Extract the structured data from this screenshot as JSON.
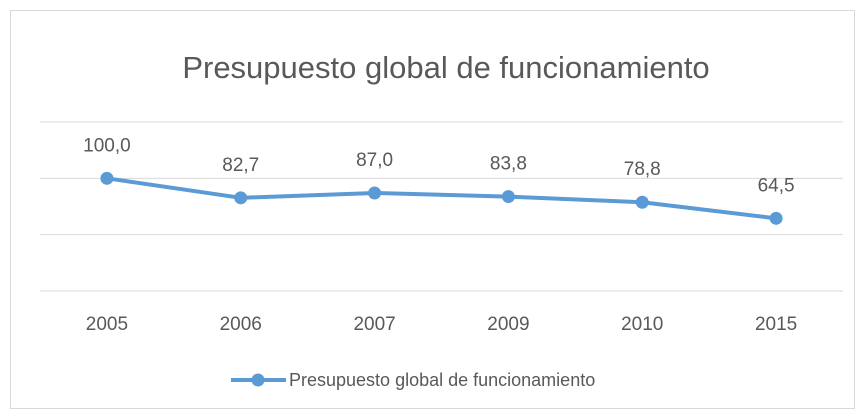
{
  "chart_data": {
    "type": "line",
    "title": "Presupuesto global de funcionamiento",
    "categories": [
      "2005",
      "2006",
      "2007",
      "2009",
      "2010",
      "2015"
    ],
    "series": [
      {
        "name": "Presupuesto global de funcionamiento",
        "color": "#5b9bd5",
        "values": [
          100.0,
          82.7,
          87.0,
          83.8,
          78.8,
          64.5
        ],
        "value_labels": [
          "100,0",
          "82,7",
          "87,0",
          "83,8",
          "78,8",
          "64,5"
        ]
      }
    ],
    "ylim": [
      0,
      150
    ],
    "yticks": [
      0,
      50,
      100,
      150
    ],
    "grid": true,
    "legend": "bottom"
  }
}
